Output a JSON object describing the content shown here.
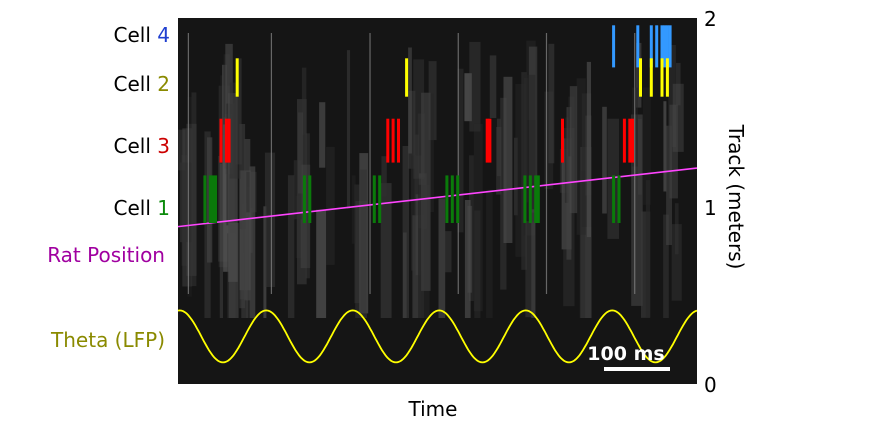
{
  "chart_data": {
    "type": "raster",
    "xlabel": "Time",
    "ylabel": "Track (meters)",
    "y_ticks": [
      "0",
      "1",
      "2"
    ],
    "ylim": [
      0,
      2
    ],
    "scalebar": {
      "label": "100 ms",
      "duration_ms": 100
    },
    "theta_cycles": 6,
    "series": [
      {
        "key": "cell4",
        "name_prefix": "Cell ",
        "number": "4",
        "color": "#1f5fd0",
        "bar_color": "#3399ff",
        "spikes": [
          [
            1.83,
            1.82,
            1.81,
            1.8,
            1.78,
            1.76,
            1.71,
            1.62
          ]
        ]
      },
      {
        "key": "cell2",
        "name_prefix": "Cell ",
        "number": "2",
        "color": "#8a8a00",
        "bar_color": "#ffff00",
        "spikes": [
          [
            0.22
          ],
          [
            0.85
          ],
          [
            1.72,
            1.76,
            1.8,
            1.82
          ]
        ]
      },
      {
        "key": "cell3",
        "name_prefix": "Cell ",
        "number": "3",
        "color": "#cc0000",
        "bar_color": "#ff0000",
        "spikes": [
          [
            0.16,
            0.18,
            0.19
          ],
          [
            0.78,
            0.8,
            0.82
          ],
          [
            1.15,
            1.16
          ],
          [
            1.43
          ],
          [
            1.66,
            1.68,
            1.69
          ]
        ]
      },
      {
        "key": "cell1",
        "name_prefix": "Cell ",
        "number": "1",
        "color": "#0a8a0a",
        "bar_color": "#0a7a0a",
        "spikes": [
          [
            0.1,
            0.12,
            0.13,
            0.14
          ],
          [
            0.47,
            0.49
          ],
          [
            0.73,
            0.75
          ],
          [
            1.0,
            1.02,
            1.04
          ],
          [
            1.29,
            1.31,
            1.33,
            1.34
          ],
          [
            1.62,
            1.64
          ]
        ]
      }
    ],
    "rat_position": {
      "name": "Rat Position",
      "color": "#ff44ff",
      "label_color": "#a000a0",
      "start_m": 0.86,
      "end_m": 1.18
    },
    "theta": {
      "name": "Theta (LFP)",
      "color": "#ffff00",
      "label_color": "#8a8a00"
    }
  }
}
